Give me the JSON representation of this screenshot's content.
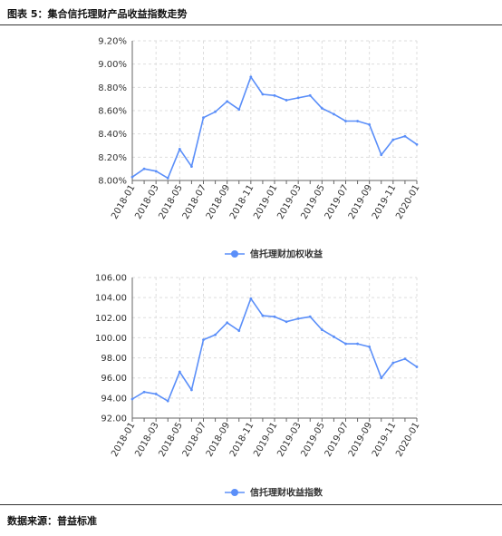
{
  "figure": {
    "title": "图表 5：集合信托理财产品收益指数走势",
    "source": "数据来源：普益标准"
  },
  "colors": {
    "series": "#5B8FF9",
    "axis": "#666666",
    "grid": "#dddddd"
  },
  "chart_data": [
    {
      "type": "line",
      "title": "",
      "xlabel": "",
      "ylabel": "",
      "ylim": [
        8.0,
        9.2
      ],
      "ytick_values": [
        8.0,
        8.2,
        8.4,
        8.6,
        8.8,
        9.0,
        9.2
      ],
      "yticks": [
        "8.00%",
        "8.20%",
        "8.40%",
        "8.60%",
        "8.80%",
        "9.00%",
        "9.20%"
      ],
      "xtick_labels": [
        "2018-01",
        "2018-03",
        "2018-05",
        "2018-07",
        "2018-09",
        "2018-11",
        "2019-01",
        "2019-03",
        "2019-05",
        "2019-07",
        "2019-09",
        "2019-11",
        "2020-01"
      ],
      "grid": true,
      "legend": "bottom",
      "x": [
        "2018-01",
        "2018-02",
        "2018-03",
        "2018-04",
        "2018-05",
        "2018-06",
        "2018-07",
        "2018-08",
        "2018-09",
        "2018-10",
        "2018-11",
        "2018-12",
        "2019-01",
        "2019-02",
        "2019-03",
        "2019-04",
        "2019-05",
        "2019-06",
        "2019-07",
        "2019-08",
        "2019-09",
        "2019-10",
        "2019-11",
        "2019-12",
        "2020-01"
      ],
      "series": [
        {
          "name": "信托理财加权收益",
          "values": [
            8.03,
            8.1,
            8.08,
            8.02,
            8.27,
            8.12,
            8.54,
            8.59,
            8.68,
            8.61,
            8.89,
            8.74,
            8.73,
            8.69,
            8.71,
            8.73,
            8.62,
            8.57,
            8.51,
            8.51,
            8.48,
            8.22,
            8.35,
            8.38,
            8.31
          ]
        }
      ]
    },
    {
      "type": "line",
      "title": "",
      "xlabel": "",
      "ylabel": "",
      "ylim": [
        92.0,
        106.0
      ],
      "ytick_values": [
        92,
        94,
        96,
        98,
        100,
        102,
        104,
        106
      ],
      "yticks": [
        "92.00",
        "94.00",
        "96.00",
        "98.00",
        "100.00",
        "102.00",
        "104.00",
        "106.00"
      ],
      "xtick_labels": [
        "2018-01",
        "2018-03",
        "2018-05",
        "2018-07",
        "2018-09",
        "2018-11",
        "2019-01",
        "2019-03",
        "2019-05",
        "2019-07",
        "2019-09",
        "2019-11",
        "2020-01"
      ],
      "grid": true,
      "legend": "bottom",
      "x": [
        "2018-01",
        "2018-02",
        "2018-03",
        "2018-04",
        "2018-05",
        "2018-06",
        "2018-07",
        "2018-08",
        "2018-09",
        "2018-10",
        "2018-11",
        "2018-12",
        "2019-01",
        "2019-02",
        "2019-03",
        "2019-04",
        "2019-05",
        "2019-06",
        "2019-07",
        "2019-08",
        "2019-09",
        "2019-10",
        "2019-11",
        "2019-12",
        "2020-01"
      ],
      "series": [
        {
          "name": "信托理财收益指数",
          "values": [
            93.9,
            94.6,
            94.4,
            93.7,
            96.6,
            94.8,
            99.8,
            100.3,
            101.5,
            100.7,
            103.9,
            102.2,
            102.1,
            101.6,
            101.9,
            102.1,
            100.8,
            100.1,
            99.4,
            99.4,
            99.1,
            96.0,
            97.5,
            97.9,
            97.1
          ]
        }
      ]
    }
  ]
}
